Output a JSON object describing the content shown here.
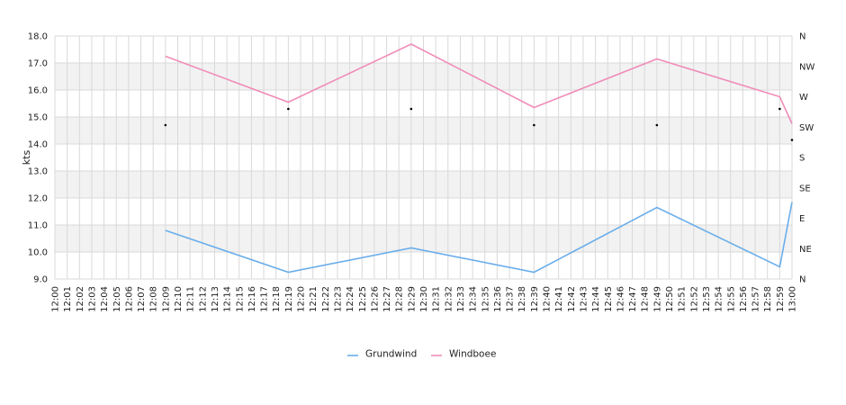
{
  "chart_data": {
    "type": "line",
    "ylabel": "kts",
    "ylim": [
      9.0,
      18.0
    ],
    "y_ticks": [
      "9.0",
      "10.0",
      "11.0",
      "12.0",
      "13.0",
      "14.0",
      "15.0",
      "16.0",
      "17.0",
      "18.0"
    ],
    "direction_ticks": [
      "N",
      "NE",
      "E",
      "SE",
      "S",
      "SW",
      "W",
      "NW",
      "N"
    ],
    "x_ticks": [
      "12:00",
      "12:01",
      "12:02",
      "12:03",
      "12:04",
      "12:05",
      "12:06",
      "12:07",
      "12:08",
      "12:09",
      "12:10",
      "12:11",
      "12:12",
      "12:13",
      "12:14",
      "12:15",
      "12:16",
      "12:17",
      "12:18",
      "12:19",
      "12:20",
      "12:21",
      "12:22",
      "12:23",
      "12:24",
      "12:25",
      "12:26",
      "12:27",
      "12:28",
      "12:29",
      "12:30",
      "12:31",
      "12:32",
      "12:33",
      "12:34",
      "12:35",
      "12:36",
      "12:37",
      "12:38",
      "12:39",
      "12:40",
      "12:41",
      "12:42",
      "12:43",
      "12:44",
      "12:45",
      "12:46",
      "12:47",
      "12:48",
      "12:49",
      "12:50",
      "12:51",
      "12:52",
      "12:53",
      "12:54",
      "12:55",
      "12:56",
      "12:57",
      "12:58",
      "12:59",
      "13:00"
    ],
    "grid": true,
    "legend_position": "bottom",
    "series": [
      {
        "name": "Grundwind",
        "color": "#6aaeea",
        "x": [
          "12:09",
          "12:19",
          "12:29",
          "12:39",
          "12:49",
          "12:59",
          "13:00"
        ],
        "values": [
          10.8,
          9.25,
          10.15,
          9.25,
          11.65,
          9.45,
          11.85
        ]
      },
      {
        "name": "Windboee",
        "color": "#f08cb9",
        "x": [
          "12:09",
          "12:19",
          "12:29",
          "12:39",
          "12:49",
          "12:59",
          "13:00"
        ],
        "values": [
          17.25,
          15.55,
          17.7,
          15.35,
          17.15,
          15.75,
          14.75
        ]
      }
    ],
    "direction_markers": [
      {
        "x": "12:09",
        "y": 14.7
      },
      {
        "x": "12:19",
        "y": 15.3
      },
      {
        "x": "12:29",
        "y": 15.3
      },
      {
        "x": "12:39",
        "y": 14.7
      },
      {
        "x": "12:49",
        "y": 14.7
      },
      {
        "x": "12:59",
        "y": 15.3
      },
      {
        "x": "13:00",
        "y": 14.15
      }
    ]
  }
}
